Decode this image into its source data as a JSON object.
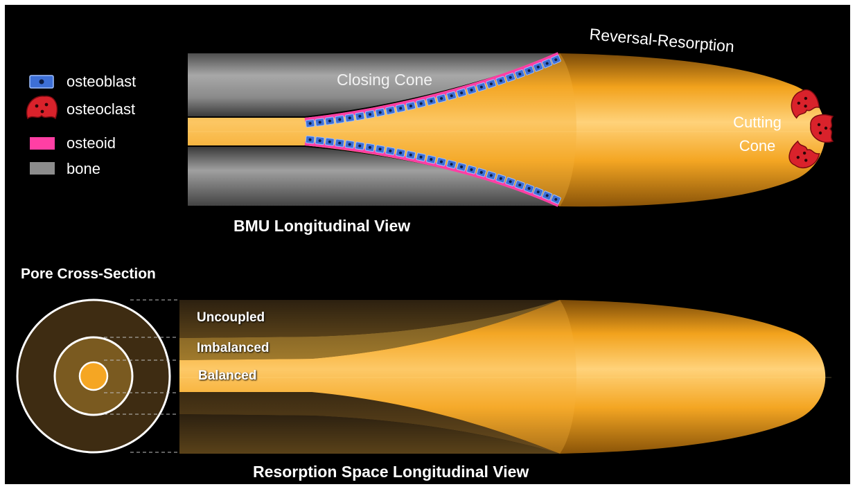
{
  "legend": {
    "items": [
      {
        "label": "osteoblast",
        "icon": "osteoblast-cell-icon"
      },
      {
        "label": "osteoclast",
        "icon": "osteoclast-cell-icon"
      },
      {
        "label": "osteoid",
        "color": "#ff3fa4"
      },
      {
        "label": "bone",
        "color": "#8c8c8c"
      }
    ]
  },
  "top_diagram": {
    "title": "BMU Longitudinal View",
    "labels": {
      "closing_cone": "Closing Cone",
      "reversal_resorption": "Reversal-Resorption",
      "cutting_cone_line1": "Cutting",
      "cutting_cone_line2": "Cone"
    }
  },
  "cross_section": {
    "title": "Pore Cross-Section"
  },
  "bottom_diagram": {
    "title": "Resorption Space Longitudinal View",
    "labels": {
      "uncoupled": "Uncoupled",
      "imbalanced": "Imbalanced",
      "balanced": "Balanced"
    }
  },
  "colors": {
    "background": "#000000",
    "orange": "#f5a623",
    "bone_gray": "#8c8c8c",
    "osteoid_pink": "#ff3fa4",
    "osteoblast_blue": "#3d6fd6",
    "osteoclast_red": "#d9222b",
    "brown": "#5a3f1a"
  }
}
